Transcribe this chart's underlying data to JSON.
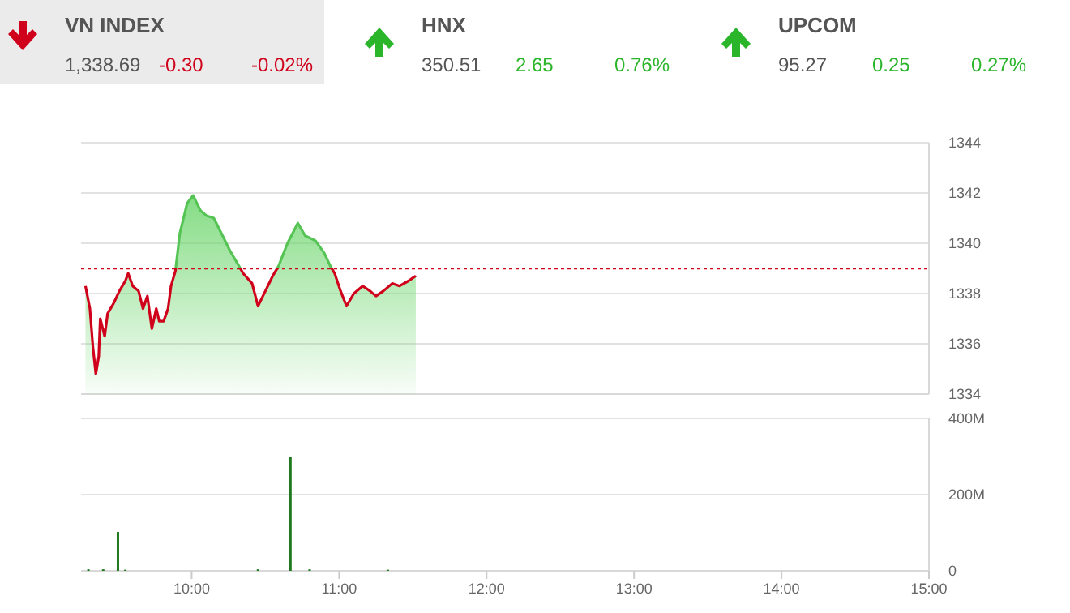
{
  "chart_data": [
    {
      "type": "other",
      "annotations": [
        "VN INDEX",
        "1,338.69",
        "-0.30",
        "-0.02%",
        "HNX",
        "350.51",
        "2.65",
        "0.76%",
        "UPCOM",
        "95.27",
        "0.25",
        "0.27%"
      ],
      "colors": [
        "#d0021b",
        "#2bb52b",
        "#2bb52b"
      ]
    },
    {
      "type": "area",
      "xlim": [
        9.25,
        15
      ],
      "ylim": [
        1334,
        1344
      ],
      "yticks": [
        1334,
        1336,
        1338,
        1340,
        1342,
        1344
      ],
      "tick_labels": "y",
      "grid": "y",
      "series": [
        {
          "color": "#d0021b",
          "x": [
            9.28,
            9.31,
            9.33,
            9.35,
            9.37,
            9.38,
            9.41,
            9.43,
            9.47,
            9.51,
            9.55,
            9.57,
            9.6,
            9.64,
            9.67,
            9.7,
            9.73,
            9.76,
            9.78,
            9.81,
            9.84,
            9.86,
            9.89,
            9.92,
            9.97,
            10.01,
            10.06,
            10.1,
            10.15,
            10.21,
            10.26,
            10.32,
            10.35,
            10.41,
            10.45,
            10.5,
            10.55,
            10.59,
            10.65,
            10.72,
            10.77,
            10.84,
            10.9,
            10.94,
            10.97,
            11.01,
            11.05,
            11.1,
            11.16,
            11.21,
            11.25,
            11.3,
            11.36,
            11.41,
            11.47,
            11.52
          ],
          "values": [
            1338.3,
            1337.4,
            1335.9,
            1334.8,
            1335.5,
            1337.0,
            1336.3,
            1337.2,
            1337.6,
            1338.1,
            1338.5,
            1338.8,
            1338.3,
            1338.1,
            1337.4,
            1337.9,
            1336.6,
            1337.4,
            1336.9,
            1336.9,
            1337.4,
            1338.3,
            1338.9,
            1340.4,
            1341.6,
            1341.9,
            1341.3,
            1341.1,
            1341.0,
            1340.3,
            1339.7,
            1339.1,
            1338.8,
            1338.4,
            1337.5,
            1338.1,
            1338.7,
            1339.1,
            1340.0,
            1340.8,
            1340.3,
            1340.1,
            1339.6,
            1339.1,
            1338.8,
            1338.1,
            1337.5,
            1338.0,
            1338.3,
            1338.1,
            1337.9,
            1338.1,
            1338.4,
            1338.3,
            1338.5,
            1338.7
          ]
        }
      ],
      "ref_lines": [
        {
          "axis": "y",
          "value": 1338.99,
          "color": "#d0021b",
          "line_style": "dotted"
        }
      ]
    },
    {
      "type": "bar",
      "xlim": [
        9.25,
        15
      ],
      "xticks": [
        {
          "value": 10,
          "label": "10:00"
        },
        {
          "value": 11,
          "label": "11:00"
        },
        {
          "value": 12,
          "label": "12:00"
        },
        {
          "value": 13,
          "label": "13:00"
        },
        {
          "value": 14,
          "label": "14:00"
        },
        {
          "value": 15,
          "label": "15:00"
        }
      ],
      "ylim": [
        0,
        400
      ],
      "yticks": [
        0,
        {
          "value": 200,
          "label": "200M"
        },
        {
          "value": 400,
          "label": "400M"
        }
      ],
      "grid": "y",
      "x": [
        9.3,
        9.4,
        9.5,
        9.55,
        10.45,
        10.67,
        10.8,
        11.33
      ],
      "values": [
        4,
        4,
        102,
        3,
        4,
        298,
        4,
        3
      ],
      "color": "#1f7a1f"
    }
  ]
}
